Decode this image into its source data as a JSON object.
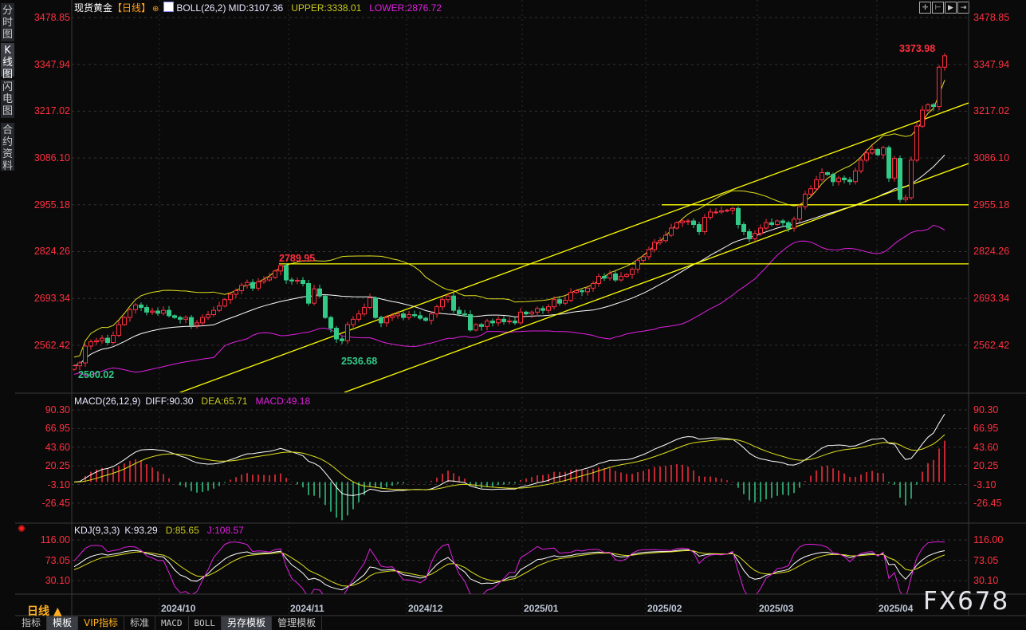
{
  "sidebar": {
    "items": [
      {
        "label": "分时图",
        "selected": false
      },
      {
        "label": "K线图",
        "selected": true
      },
      {
        "label": "闪电图",
        "selected": false
      },
      {
        "label": "合约资料",
        "selected": false
      }
    ]
  },
  "header": {
    "title": "现货黄金",
    "period": "【日线】",
    "indicator": "BOLL(26,2)",
    "mid": "MID:3107.36",
    "upper": "UPPER:3338.01",
    "lower": "LOWER:2876.72"
  },
  "toolbar_icons": [
    "crosshair-icon",
    "zoom-to-start-icon",
    "play-forward-icon",
    "jump-to-end-icon"
  ],
  "macd_header": {
    "name": "MACD(26,12,9)",
    "diff": "DIFF:90.30",
    "dea": "DEA:65.71",
    "macd": "MACD:49.18"
  },
  "kdj_header": {
    "name": "KDJ(9,3,3)",
    "k": "K:93.29",
    "d": "D:85.65",
    "j": "J:108.57"
  },
  "period_selector": "日线 ▲",
  "bottom_tabs": [
    {
      "label": "指标",
      "selected": false
    },
    {
      "label": "模板",
      "selected": true
    },
    {
      "label": "VIP指标",
      "selected": false
    },
    {
      "label": "标准",
      "selected": false
    },
    {
      "label": "MACD",
      "selected": false
    },
    {
      "label": "BOLL",
      "selected": false
    },
    {
      "label": "另存模板",
      "selected": true
    },
    {
      "label": "管理模板",
      "selected": false
    }
  ],
  "watermark": "FX678",
  "colors": {
    "up": "#ff3040",
    "down": "#33c987",
    "axis_text": "#ff3040",
    "mid": "#ffffff",
    "upper": "#e0e020",
    "lower": "#e020e0",
    "trendline": "#ffff00",
    "background": "#0a0a0a"
  },
  "chart_data": {
    "type": "candlestick",
    "instrument": "现货黄金",
    "period": "日线",
    "price_ticks": [
      "3478.85",
      "3347.94",
      "3217.02",
      "3086.10",
      "2955.18",
      "2824.26",
      "2693.34",
      "2562.42"
    ],
    "macd_ticks": [
      "90.30",
      "66.95",
      "43.60",
      "20.25",
      "-3.10",
      "-26.45"
    ],
    "kdj_ticks": [
      "116.00",
      "73.05",
      "30.10"
    ],
    "x_tick_labels": [
      "2024/10",
      "2024/11",
      "2024/12",
      "2025/01",
      "2025/02",
      "2025/03",
      "2025/04"
    ],
    "annotations": [
      {
        "text": "2789.95",
        "kind": "high",
        "value": 2789.95
      },
      {
        "text": "2500.02",
        "kind": "low",
        "value": 2500.02
      },
      {
        "text": "2536.68",
        "kind": "low",
        "value": 2536.68
      },
      {
        "text": "3373.98",
        "kind": "high",
        "value": 3373.98
      }
    ],
    "horizontal_lines": [
      2789.95,
      2955.18
    ],
    "closes": [
      2505,
      2513,
      2560,
      2572,
      2575,
      2582,
      2570,
      2590,
      2620,
      2640,
      2662,
      2675,
      2668,
      2655,
      2658,
      2652,
      2660,
      2645,
      2640,
      2635,
      2640,
      2618,
      2625,
      2640,
      2648,
      2660,
      2672,
      2690,
      2705,
      2715,
      2730,
      2738,
      2722,
      2740,
      2745,
      2752,
      2770,
      2785,
      2745,
      2742,
      2744,
      2735,
      2680,
      2720,
      2700,
      2640,
      2610,
      2580,
      2575,
      2620,
      2635,
      2650,
      2668,
      2695,
      2640,
      2625,
      2640,
      2645,
      2650,
      2640,
      2648,
      2645,
      2638,
      2632,
      2650,
      2670,
      2690,
      2700,
      2660,
      2650,
      2648,
      2605,
      2620,
      2615,
      2630,
      2625,
      2635,
      2628,
      2630,
      2625,
      2655,
      2650,
      2655,
      2665,
      2660,
      2670,
      2690,
      2680,
      2688,
      2710,
      2715,
      2712,
      2722,
      2735,
      2755,
      2750,
      2762,
      2745,
      2755,
      2760,
      2775,
      2800,
      2810,
      2830,
      2850,
      2855,
      2870,
      2890,
      2905,
      2910,
      2910,
      2900,
      2880,
      2920,
      2935,
      2935,
      2938,
      2940,
      2945,
      2900,
      2880,
      2860,
      2875,
      2890,
      2905,
      2900,
      2910,
      2905,
      2890,
      2915,
      2950,
      2985,
      3000,
      3025,
      3045,
      3040,
      3020,
      3030,
      3025,
      3020,
      3050,
      3080,
      3100,
      3110,
      3095,
      3115,
      3030,
      3085,
      2970,
      2975,
      3080,
      3175,
      3220,
      3235,
      3230,
      3340,
      3372
    ],
    "first_open": 2495,
    "indicators": [
      "BOLL(26,2)",
      "MACD(26,12,9)",
      "KDJ(9,3,3)"
    ],
    "grid": true
  }
}
